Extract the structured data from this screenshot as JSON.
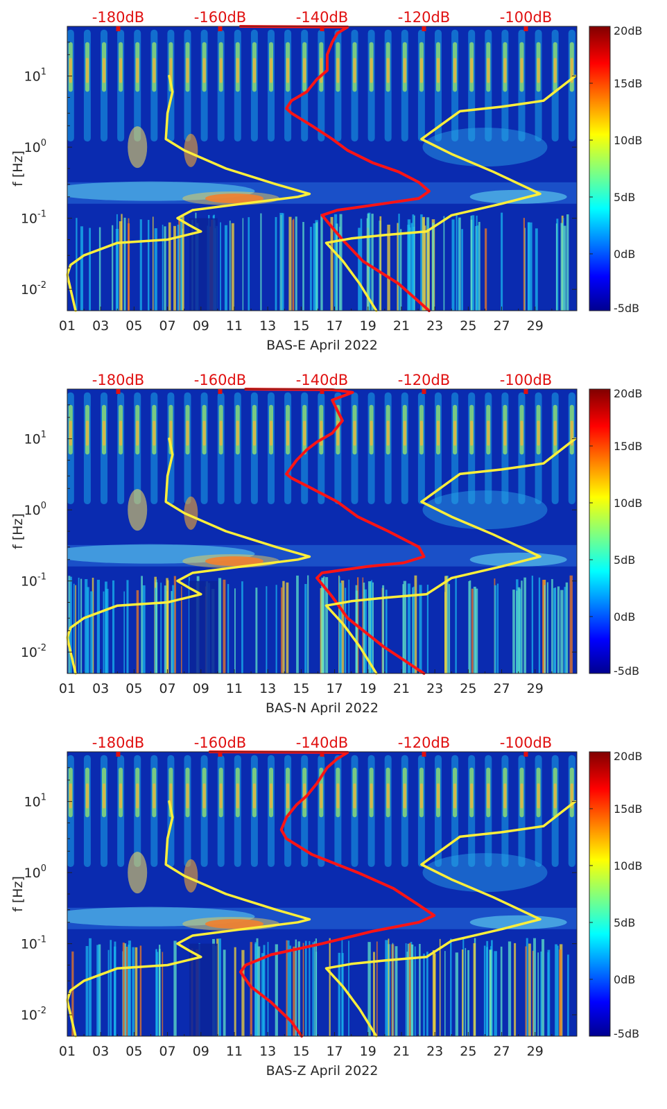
{
  "figure": {
    "ylabel": "f [Hz]",
    "x_tick_labels": [
      "01",
      "03",
      "05",
      "07",
      "09",
      "11",
      "13",
      "15",
      "17",
      "19",
      "21",
      "23",
      "25",
      "27",
      "29"
    ],
    "y_tick_labels": [
      {
        "base": "10",
        "exp": "1"
      },
      {
        "base": "10",
        "exp": "0"
      },
      {
        "base": "10",
        "exp": "-1"
      },
      {
        "base": "10",
        "exp": "-2"
      }
    ],
    "top_tick_labels": [
      "-180dB",
      "-160dB",
      "-140dB",
      "-120dB",
      "-100dB"
    ],
    "colorbar_tick_labels": [
      "20dB",
      "15dB",
      "10dB",
      "5dB",
      "0dB",
      "-5dB"
    ],
    "colors": {
      "background": "#0a2bb0",
      "psd_curve": "#ff1414",
      "model_curve": "#ffef3a",
      "top_axis_text": "#e01010"
    }
  },
  "chart_data": [
    {
      "type": "heatmap",
      "title": "",
      "xlabel": "BAS-E April 2022",
      "ylabel": "f [Hz]",
      "x_unit": "day of April 2022",
      "xlim": [
        1,
        31.5
      ],
      "ylim": [
        0.005,
        50
      ],
      "y_scale": "log",
      "colorbar": {
        "label": "",
        "range_db": [
          -5,
          20
        ],
        "colormap": "jet"
      },
      "overlay_axis": {
        "position": "top",
        "range_db": [
          -190,
          -90
        ]
      },
      "series": [
        {
          "kind": "line",
          "color": "#ff1414",
          "axis": "top_db",
          "points": [
            [
              -156,
              50
            ],
            [
              -135,
              49
            ],
            [
              -137,
              40
            ],
            [
              -138,
              30
            ],
            [
              -139,
              20
            ],
            [
              -139,
              12
            ],
            [
              -141,
              9
            ],
            [
              -143,
              6
            ],
            [
              -146,
              4.5
            ],
            [
              -147,
              3.5
            ],
            [
              -146,
              3
            ],
            [
              -142,
              2
            ],
            [
              -138,
              1.3
            ],
            [
              -135,
              0.9
            ],
            [
              -130,
              0.6
            ],
            [
              -125,
              0.45
            ],
            [
              -121,
              0.32
            ],
            [
              -119,
              0.24
            ],
            [
              -121,
              0.19
            ],
            [
              -128,
              0.16
            ],
            [
              -137,
              0.13
            ],
            [
              -140,
              0.11
            ],
            [
              -139,
              0.09
            ],
            [
              -136,
              0.05
            ],
            [
              -132,
              0.025
            ],
            [
              -125,
              0.012
            ],
            [
              -119,
              0.005
            ]
          ]
        },
        {
          "kind": "line",
          "color": "#ffef3a",
          "axis": "bottom_days",
          "points": [
            [
              7.1,
              10
            ],
            [
              7.3,
              6
            ],
            [
              7.0,
              3
            ],
            [
              6.9,
              1.3
            ],
            [
              8.0,
              0.9
            ],
            [
              10.5,
              0.5
            ],
            [
              13.5,
              0.3
            ],
            [
              15.5,
              0.22
            ],
            [
              14.8,
              0.2
            ],
            [
              11.5,
              0.16
            ],
            [
              8.5,
              0.13
            ],
            [
              7.6,
              0.1
            ],
            [
              8.3,
              0.08
            ],
            [
              9.0,
              0.065
            ],
            [
              7.0,
              0.05
            ],
            [
              4.0,
              0.045
            ],
            [
              2.0,
              0.03
            ],
            [
              1.2,
              0.022
            ],
            [
              1.0,
              0.016
            ],
            [
              1.2,
              0.01
            ],
            [
              1.5,
              0.005
            ]
          ]
        },
        {
          "kind": "line",
          "color": "#ffef3a",
          "axis": "bottom_days",
          "points": [
            [
              31.4,
              10
            ],
            [
              29.5,
              4.5
            ],
            [
              27.0,
              3.7
            ],
            [
              24.5,
              3.2
            ],
            [
              22.2,
              1.3
            ],
            [
              24.0,
              0.8
            ],
            [
              26.5,
              0.45
            ],
            [
              29.3,
              0.22
            ],
            [
              27.0,
              0.16
            ],
            [
              24.0,
              0.11
            ],
            [
              22.5,
              0.065
            ],
            [
              20.0,
              0.058
            ],
            [
              18.0,
              0.052
            ],
            [
              16.5,
              0.045
            ],
            [
              17.5,
              0.025
            ],
            [
              18.5,
              0.012
            ],
            [
              19.5,
              0.005
            ]
          ]
        }
      ]
    },
    {
      "type": "heatmap",
      "title": "",
      "xlabel": "BAS-N April 2022",
      "ylabel": "f [Hz]",
      "x_unit": "day of April 2022",
      "xlim": [
        1,
        31.5
      ],
      "ylim": [
        0.005,
        50
      ],
      "y_scale": "log",
      "colorbar": {
        "label": "",
        "range_db": [
          -5,
          20
        ],
        "colormap": "jet"
      },
      "overlay_axis": {
        "position": "top",
        "range_db": [
          -190,
          -90
        ]
      },
      "series": [
        {
          "kind": "line",
          "color": "#ff1414",
          "axis": "top_db",
          "points": [
            [
              -155,
              50
            ],
            [
              -138,
              49
            ],
            [
              -134,
              45
            ],
            [
              -138,
              35
            ],
            [
              -137,
              25
            ],
            [
              -136,
              18
            ],
            [
              -138,
              12
            ],
            [
              -141,
              9
            ],
            [
              -143,
              7
            ],
            [
              -145,
              5
            ],
            [
              -147,
              3.2
            ],
            [
              -146,
              2.8
            ],
            [
              -142,
              2
            ],
            [
              -137,
              1.3
            ],
            [
              -133,
              0.8
            ],
            [
              -127,
              0.5
            ],
            [
              -121,
              0.3
            ],
            [
              -120,
              0.22
            ],
            [
              -124,
              0.18
            ],
            [
              -131,
              0.16
            ],
            [
              -140,
              0.13
            ],
            [
              -141,
              0.11
            ],
            [
              -140,
              0.09
            ],
            [
              -138,
              0.06
            ],
            [
              -135,
              0.03
            ],
            [
              -128,
              0.012
            ],
            [
              -120,
              0.005
            ]
          ]
        },
        {
          "kind": "line",
          "color": "#ffef3a",
          "axis": "bottom_days",
          "points": [
            [
              7.1,
              10
            ],
            [
              7.3,
              6
            ],
            [
              7.0,
              3
            ],
            [
              6.9,
              1.3
            ],
            [
              8.0,
              0.9
            ],
            [
              10.5,
              0.5
            ],
            [
              13.5,
              0.3
            ],
            [
              15.5,
              0.22
            ],
            [
              14.8,
              0.2
            ],
            [
              11.5,
              0.16
            ],
            [
              8.5,
              0.13
            ],
            [
              7.6,
              0.1
            ],
            [
              8.3,
              0.08
            ],
            [
              9.0,
              0.065
            ],
            [
              7.0,
              0.05
            ],
            [
              4.0,
              0.045
            ],
            [
              2.0,
              0.03
            ],
            [
              1.2,
              0.022
            ],
            [
              1.0,
              0.016
            ],
            [
              1.2,
              0.01
            ],
            [
              1.5,
              0.005
            ]
          ]
        },
        {
          "kind": "line",
          "color": "#ffef3a",
          "axis": "bottom_days",
          "points": [
            [
              31.4,
              10
            ],
            [
              29.5,
              4.5
            ],
            [
              27.0,
              3.7
            ],
            [
              24.5,
              3.2
            ],
            [
              22.2,
              1.3
            ],
            [
              24.0,
              0.8
            ],
            [
              26.5,
              0.45
            ],
            [
              29.3,
              0.22
            ],
            [
              27.0,
              0.16
            ],
            [
              24.0,
              0.11
            ],
            [
              22.5,
              0.065
            ],
            [
              20.0,
              0.058
            ],
            [
              18.0,
              0.052
            ],
            [
              16.5,
              0.045
            ],
            [
              17.5,
              0.025
            ],
            [
              18.5,
              0.012
            ],
            [
              19.5,
              0.005
            ]
          ]
        }
      ]
    },
    {
      "type": "heatmap",
      "title": "",
      "xlabel": "BAS-Z April 2022",
      "ylabel": "f [Hz]",
      "x_unit": "day of April 2022",
      "xlim": [
        1,
        31.5
      ],
      "ylim": [
        0.005,
        50
      ],
      "y_scale": "log",
      "colorbar": {
        "label": "",
        "range_db": [
          -5,
          20
        ],
        "colormap": "jet"
      },
      "overlay_axis": {
        "position": "top",
        "range_db": [
          -190,
          -90
        ]
      },
      "series": [
        {
          "kind": "line",
          "color": "#ff1414",
          "axis": "top_db",
          "points": [
            [
              -162,
              50
            ],
            [
              -135,
              49
            ],
            [
              -137,
              40
            ],
            [
              -139,
              30
            ],
            [
              -141,
              18
            ],
            [
              -143,
              12
            ],
            [
              -145,
              9
            ],
            [
              -147,
              6
            ],
            [
              -148,
              4
            ],
            [
              -147,
              3
            ],
            [
              -142,
              1.8
            ],
            [
              -133,
              1
            ],
            [
              -126,
              0.6
            ],
            [
              -121,
              0.35
            ],
            [
              -118,
              0.25
            ],
            [
              -121,
              0.2
            ],
            [
              -130,
              0.15
            ],
            [
              -140,
              0.1
            ],
            [
              -150,
              0.07
            ],
            [
              -155,
              0.05
            ],
            [
              -156,
              0.04
            ],
            [
              -154,
              0.025
            ],
            [
              -150,
              0.015
            ],
            [
              -146,
              0.008
            ],
            [
              -144,
              0.005
            ]
          ]
        },
        {
          "kind": "line",
          "color": "#ffef3a",
          "axis": "bottom_days",
          "points": [
            [
              7.1,
              10
            ],
            [
              7.3,
              6
            ],
            [
              7.0,
              3
            ],
            [
              6.9,
              1.3
            ],
            [
              8.0,
              0.9
            ],
            [
              10.5,
              0.5
            ],
            [
              13.5,
              0.3
            ],
            [
              15.5,
              0.22
            ],
            [
              14.8,
              0.2
            ],
            [
              11.5,
              0.16
            ],
            [
              8.5,
              0.13
            ],
            [
              7.6,
              0.1
            ],
            [
              8.3,
              0.08
            ],
            [
              9.0,
              0.065
            ],
            [
              7.0,
              0.05
            ],
            [
              4.0,
              0.045
            ],
            [
              2.0,
              0.03
            ],
            [
              1.2,
              0.022
            ],
            [
              1.0,
              0.016
            ],
            [
              1.2,
              0.01
            ],
            [
              1.5,
              0.005
            ]
          ]
        },
        {
          "kind": "line",
          "color": "#ffef3a",
          "axis": "bottom_days",
          "points": [
            [
              31.4,
              10
            ],
            [
              29.5,
              4.5
            ],
            [
              27.0,
              3.7
            ],
            [
              24.5,
              3.2
            ],
            [
              22.2,
              1.3
            ],
            [
              24.0,
              0.8
            ],
            [
              26.5,
              0.45
            ],
            [
              29.3,
              0.22
            ],
            [
              27.0,
              0.16
            ],
            [
              24.0,
              0.11
            ],
            [
              22.5,
              0.065
            ],
            [
              20.0,
              0.058
            ],
            [
              18.0,
              0.052
            ],
            [
              16.5,
              0.045
            ],
            [
              17.5,
              0.025
            ],
            [
              18.5,
              0.012
            ],
            [
              19.5,
              0.005
            ]
          ]
        }
      ]
    }
  ]
}
